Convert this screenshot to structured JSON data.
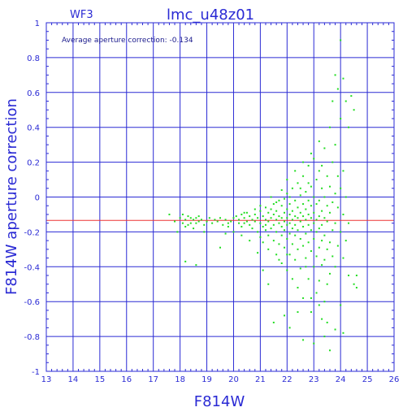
{
  "chart_data": {
    "type": "scatter",
    "title": "lmc_u48z01",
    "subtitle": "WF3",
    "xlabel": "F814W",
    "ylabel": "F814W aperture correction",
    "annotation": "Average aperture correction: -0.134",
    "xlim": [
      13,
      26
    ],
    "ylim": [
      -1,
      1
    ],
    "xticks": [
      13,
      14,
      15,
      16,
      17,
      18,
      19,
      20,
      21,
      22,
      23,
      24,
      25,
      26
    ],
    "yticks": [
      -1,
      -0.8,
      -0.6,
      -0.4,
      -0.2,
      0,
      0.2,
      0.4,
      0.6,
      0.8,
      1
    ],
    "ytick_labels": [
      "-1",
      "-0.8",
      "-0.6",
      "-0.4",
      "-0.2",
      "0",
      "0.2",
      "0.4",
      "0.6",
      "0.8",
      "1"
    ],
    "grid": true,
    "colors": {
      "frame": "#2a2ad4",
      "grid": "#2a2ad4",
      "points": "#22dd22",
      "reference_line": "#ee3333"
    },
    "reference_line_y": -0.134,
    "points": [
      [
        17.6,
        -0.1
      ],
      [
        17.8,
        -0.14
      ],
      [
        17.9,
        -0.2
      ],
      [
        18.0,
        -0.12
      ],
      [
        18.1,
        -0.15
      ],
      [
        18.1,
        -0.1
      ],
      [
        18.2,
        -0.13
      ],
      [
        18.2,
        -0.17
      ],
      [
        18.3,
        -0.11
      ],
      [
        18.3,
        -0.16
      ],
      [
        18.4,
        -0.12
      ],
      [
        18.4,
        -0.15
      ],
      [
        18.5,
        -0.13
      ],
      [
        18.5,
        -0.18
      ],
      [
        18.6,
        -0.12
      ],
      [
        18.6,
        -0.15
      ],
      [
        18.7,
        -0.11
      ],
      [
        18.7,
        -0.14
      ],
      [
        18.8,
        -0.13
      ],
      [
        18.9,
        -0.16
      ],
      [
        18.2,
        -0.37
      ],
      [
        18.6,
        -0.39
      ],
      [
        18.9,
        -0.2
      ],
      [
        19.0,
        -0.14
      ],
      [
        19.1,
        -0.12
      ],
      [
        19.2,
        -0.15
      ],
      [
        19.3,
        -0.13
      ],
      [
        19.4,
        -0.14
      ],
      [
        19.5,
        -0.12
      ],
      [
        19.6,
        -0.16
      ],
      [
        19.7,
        -0.13
      ],
      [
        19.8,
        -0.15
      ],
      [
        19.9,
        -0.14
      ],
      [
        20.0,
        -0.12
      ],
      [
        19.8,
        -0.17
      ],
      [
        19.5,
        -0.29
      ],
      [
        20.1,
        -0.11
      ],
      [
        20.2,
        -0.15
      ],
      [
        20.2,
        -0.13
      ],
      [
        20.3,
        -0.1
      ],
      [
        20.3,
        -0.17
      ],
      [
        20.4,
        -0.12
      ],
      [
        20.4,
        -0.15
      ],
      [
        20.5,
        -0.09
      ],
      [
        20.5,
        -0.14
      ],
      [
        20.6,
        -0.11
      ],
      [
        20.6,
        -0.16
      ],
      [
        20.7,
        -0.13
      ],
      [
        20.7,
        -0.18
      ],
      [
        20.8,
        -0.1
      ],
      [
        20.8,
        -0.14
      ],
      [
        20.9,
        -0.12
      ],
      [
        20.9,
        -0.2
      ],
      [
        21.0,
        -0.08
      ],
      [
        21.0,
        -0.15
      ],
      [
        21.0,
        -0.23
      ],
      [
        21.1,
        -0.11
      ],
      [
        21.1,
        -0.17
      ],
      [
        21.1,
        -0.26
      ],
      [
        21.2,
        -0.06
      ],
      [
        21.2,
        -0.13
      ],
      [
        21.2,
        -0.19
      ],
      [
        21.3,
        -0.09
      ],
      [
        21.3,
        -0.14
      ],
      [
        21.3,
        -0.22
      ],
      [
        21.3,
        -0.3
      ],
      [
        21.4,
        -0.07
      ],
      [
        21.4,
        -0.12
      ],
      [
        21.4,
        -0.18
      ],
      [
        21.5,
        -0.04
      ],
      [
        21.5,
        -0.1
      ],
      [
        21.5,
        -0.16
      ],
      [
        21.5,
        -0.25
      ],
      [
        21.6,
        -0.08
      ],
      [
        21.6,
        -0.13
      ],
      [
        21.6,
        -0.2
      ],
      [
        21.6,
        -0.33
      ],
      [
        21.7,
        -0.02
      ],
      [
        21.7,
        -0.11
      ],
      [
        21.7,
        -0.15
      ],
      [
        21.7,
        -0.27
      ],
      [
        21.8,
        -0.05
      ],
      [
        21.8,
        -0.12
      ],
      [
        21.8,
        -0.17
      ],
      [
        21.8,
        -0.22
      ],
      [
        21.8,
        -0.38
      ],
      [
        21.9,
        -0.01
      ],
      [
        21.9,
        -0.09
      ],
      [
        21.9,
        -0.14
      ],
      [
        21.9,
        -0.19
      ],
      [
        21.9,
        -0.29
      ],
      [
        22.0,
        0.02
      ],
      [
        22.0,
        -0.07
      ],
      [
        22.0,
        -0.12
      ],
      [
        22.0,
        -0.16
      ],
      [
        22.0,
        -0.24
      ],
      [
        22.0,
        -0.42
      ],
      [
        22.1,
        -0.04
      ],
      [
        22.1,
        -0.1
      ],
      [
        22.1,
        -0.15
      ],
      [
        22.1,
        -0.21
      ],
      [
        22.1,
        -0.33
      ],
      [
        22.2,
        0.05
      ],
      [
        22.2,
        -0.08
      ],
      [
        22.2,
        -0.13
      ],
      [
        22.2,
        -0.18
      ],
      [
        22.2,
        -0.27
      ],
      [
        22.2,
        -0.47
      ],
      [
        22.3,
        -0.02
      ],
      [
        22.3,
        -0.11
      ],
      [
        22.3,
        -0.16
      ],
      [
        22.3,
        -0.22
      ],
      [
        22.3,
        -0.36
      ],
      [
        22.4,
        0.08
      ],
      [
        22.4,
        -0.06
      ],
      [
        22.4,
        -0.12
      ],
      [
        22.4,
        -0.19
      ],
      [
        22.4,
        -0.3
      ],
      [
        22.4,
        -0.52
      ],
      [
        22.5,
        0.01
      ],
      [
        22.5,
        -0.09
      ],
      [
        22.5,
        -0.14
      ],
      [
        22.5,
        -0.24
      ],
      [
        22.5,
        -0.41
      ],
      [
        22.6,
        0.12
      ],
      [
        22.6,
        -0.04
      ],
      [
        22.6,
        -0.11
      ],
      [
        22.6,
        -0.17
      ],
      [
        22.6,
        -0.28
      ],
      [
        22.6,
        -0.58
      ],
      [
        22.7,
        0.03
      ],
      [
        22.7,
        -0.07
      ],
      [
        22.7,
        -0.13
      ],
      [
        22.7,
        -0.21
      ],
      [
        22.7,
        -0.35
      ],
      [
        22.8,
        0.18
      ],
      [
        22.8,
        -0.02
      ],
      [
        22.8,
        -0.1
      ],
      [
        22.8,
        -0.16
      ],
      [
        22.8,
        -0.26
      ],
      [
        22.8,
        -0.47
      ],
      [
        22.9,
        0.06
      ],
      [
        22.9,
        -0.05
      ],
      [
        22.9,
        -0.12
      ],
      [
        22.9,
        -0.19
      ],
      [
        22.9,
        -0.31
      ],
      [
        22.9,
        -0.66
      ],
      [
        23.0,
        0.22
      ],
      [
        23.0,
        0.0
      ],
      [
        23.0,
        -0.09
      ],
      [
        23.0,
        -0.15
      ],
      [
        23.0,
        -0.24
      ],
      [
        23.0,
        -0.4
      ],
      [
        23.1,
        0.1
      ],
      [
        23.1,
        -0.04
      ],
      [
        23.1,
        -0.13
      ],
      [
        23.1,
        -0.2
      ],
      [
        23.1,
        -0.34
      ],
      [
        23.1,
        -0.55
      ],
      [
        23.2,
        0.15
      ],
      [
        23.2,
        -0.02
      ],
      [
        23.2,
        -0.11
      ],
      [
        23.2,
        -0.18
      ],
      [
        23.2,
        -0.29
      ],
      [
        23.2,
        -0.48
      ],
      [
        23.3,
        0.05
      ],
      [
        23.3,
        -0.08
      ],
      [
        23.3,
        -0.16
      ],
      [
        23.3,
        -0.25
      ],
      [
        23.3,
        -0.39
      ],
      [
        23.3,
        -0.7
      ],
      [
        23.4,
        0.28
      ],
      [
        23.4,
        0.0
      ],
      [
        23.4,
        -0.12
      ],
      [
        23.4,
        -0.22
      ],
      [
        23.4,
        -0.36
      ],
      [
        23.4,
        -0.6
      ],
      [
        23.5,
        0.12
      ],
      [
        23.5,
        -0.05
      ],
      [
        23.5,
        -0.14
      ],
      [
        23.5,
        -0.3
      ],
      [
        23.5,
        -0.5
      ],
      [
        23.6,
        0.4
      ],
      [
        23.6,
        0.06
      ],
      [
        23.6,
        -0.09
      ],
      [
        23.6,
        -0.26
      ],
      [
        23.6,
        -0.44
      ],
      [
        23.7,
        0.55
      ],
      [
        23.7,
        0.2
      ],
      [
        23.7,
        -0.03
      ],
      [
        23.7,
        -0.19
      ],
      [
        23.7,
        -0.34
      ],
      [
        23.8,
        0.7
      ],
      [
        23.8,
        0.3
      ],
      [
        23.8,
        0.02
      ],
      [
        23.8,
        -0.15
      ],
      [
        23.8,
        -0.4
      ],
      [
        23.9,
        0.62
      ],
      [
        23.9,
        0.12
      ],
      [
        23.9,
        -0.06
      ],
      [
        23.9,
        -0.28
      ],
      [
        24.0,
        0.9
      ],
      [
        24.0,
        0.45
      ],
      [
        24.0,
        0.05
      ],
      [
        24.0,
        -0.2
      ],
      [
        24.1,
        0.68
      ],
      [
        24.1,
        0.15
      ],
      [
        24.1,
        -0.1
      ],
      [
        24.1,
        -0.35
      ],
      [
        24.2,
        0.55
      ],
      [
        24.2,
        0.0
      ],
      [
        24.2,
        -0.25
      ],
      [
        24.3,
        0.4
      ],
      [
        24.3,
        -0.15
      ],
      [
        24.3,
        -0.45
      ],
      [
        24.4,
        0.58
      ],
      [
        24.5,
        0.5
      ],
      [
        24.5,
        -0.5
      ],
      [
        24.6,
        -0.52
      ],
      [
        24.6,
        -0.45
      ],
      [
        23.0,
        -0.84
      ],
      [
        22.6,
        -0.82
      ],
      [
        23.4,
        -0.8
      ],
      [
        23.8,
        -0.76
      ],
      [
        24.1,
        -0.78
      ],
      [
        21.5,
        -0.72
      ],
      [
        21.9,
        -0.68
      ],
      [
        22.1,
        -0.75
      ],
      [
        23.6,
        -0.88
      ],
      [
        21.3,
        -0.5
      ],
      [
        21.1,
        -0.42
      ],
      [
        20.9,
        -0.32
      ],
      [
        20.6,
        -0.25
      ],
      [
        20.3,
        -0.22
      ],
      [
        20.0,
        -0.2
      ],
      [
        19.7,
        -0.21
      ],
      [
        22.4,
        -0.66
      ],
      [
        22.9,
        -0.58
      ],
      [
        23.2,
        -0.62
      ],
      [
        24.0,
        -0.62
      ],
      [
        21.0,
        -0.05
      ],
      [
        21.4,
        0.0
      ],
      [
        21.8,
        0.04
      ],
      [
        22.0,
        0.1
      ],
      [
        22.3,
        0.15
      ],
      [
        22.6,
        0.2
      ],
      [
        22.9,
        0.25
      ],
      [
        23.2,
        0.32
      ],
      [
        22.8,
        0.08
      ],
      [
        22.5,
        0.05
      ],
      [
        22.1,
        0.0
      ],
      [
        21.6,
        -0.03
      ],
      [
        23.5,
        -0.72
      ],
      [
        23.3,
        0.18
      ],
      [
        22.7,
        -0.4
      ],
      [
        22.0,
        -0.33
      ],
      [
        21.7,
        -0.36
      ],
      [
        21.2,
        -0.16
      ],
      [
        20.8,
        -0.07
      ],
      [
        20.4,
        -0.09
      ]
    ]
  }
}
